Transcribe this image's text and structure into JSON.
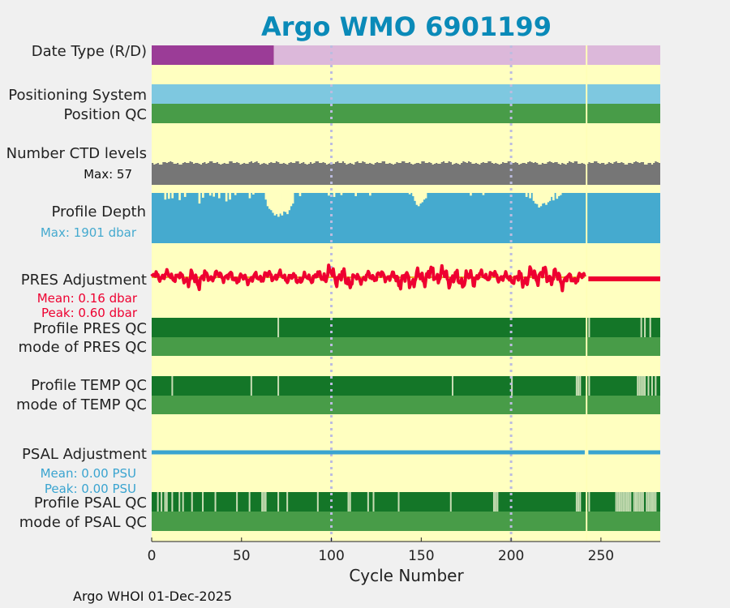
{
  "chart_data": {
    "type": "band-timeline",
    "title": "Argo WMO 6901199",
    "xlabel": "Cycle Number",
    "xlim": [
      0,
      283
    ],
    "xticks": [
      0,
      50,
      100,
      150,
      200,
      250
    ],
    "gridlines_x": [
      100,
      200
    ],
    "marker_cycle": 242,
    "footer": "Argo WHOI 01-Dec-2025",
    "colors": {
      "background": "#ffffc0",
      "figure": "#f0f0f0",
      "title": "#0a8ab8",
      "qc_good": "#147628",
      "qc_mode": "#489c48",
      "qc_flag": "#c8ddb4",
      "positioning": "#7ec8e0",
      "ctd": "#767676",
      "depth": "#45aacf",
      "pres_line": "#ee0030",
      "psal_line": "#3aa4d0",
      "date_realtime": "#9b3c97",
      "date_delayed": "#dcb8da",
      "grid": "#bcbce0",
      "marker": "#ffffb8"
    },
    "rows": {
      "date_type": {
        "label": "Date Type (R/D)",
        "segments": [
          {
            "start": 0,
            "end": 68,
            "mode": "R"
          },
          {
            "start": 68,
            "end": 283,
            "mode": "D"
          }
        ]
      },
      "positioning": {
        "label": "Positioning System"
      },
      "position_qc": {
        "label": "Position QC"
      },
      "ctd_levels": {
        "label": "Number CTD levels",
        "max_label": "Max: 57",
        "max": 57
      },
      "profile_depth": {
        "label": "Profile Depth",
        "max_label": "Max: 1901 dbar",
        "max_dbar": 1901,
        "shallow_cycles": [
          {
            "cycle": 7,
            "dbar": 1650
          },
          {
            "cycle": 9,
            "dbar": 1680
          },
          {
            "cycle": 11,
            "dbar": 1700
          },
          {
            "cycle": 15,
            "dbar": 1630
          },
          {
            "cycle": 18,
            "dbar": 1750
          },
          {
            "cycle": 26,
            "dbar": 1500
          },
          {
            "cycle": 28,
            "dbar": 1720
          },
          {
            "cycle": 32,
            "dbar": 1800
          },
          {
            "cycle": 34,
            "dbar": 1760
          },
          {
            "cycle": 37,
            "dbar": 1700
          },
          {
            "cycle": 41,
            "dbar": 1580
          },
          {
            "cycle": 43,
            "dbar": 1650
          },
          {
            "cycle": 46,
            "dbar": 1820
          },
          {
            "cycle": 54,
            "dbar": 1700
          },
          {
            "cycle": 56,
            "dbar": 1840
          },
          {
            "cycle": 63,
            "dbar": 1650
          },
          {
            "cycle": 64,
            "dbar": 1400
          },
          {
            "cycle": 65,
            "dbar": 1300
          },
          {
            "cycle": 66,
            "dbar": 1250
          },
          {
            "cycle": 67,
            "dbar": 1150
          },
          {
            "cycle": 68,
            "dbar": 1050
          },
          {
            "cycle": 69,
            "dbar": 1100
          },
          {
            "cycle": 70,
            "dbar": 1000
          },
          {
            "cycle": 71,
            "dbar": 1120
          },
          {
            "cycle": 72,
            "dbar": 1050
          },
          {
            "cycle": 73,
            "dbar": 1200
          },
          {
            "cycle": 74,
            "dbar": 1180
          },
          {
            "cycle": 75,
            "dbar": 1100
          },
          {
            "cycle": 76,
            "dbar": 1250
          },
          {
            "cycle": 77,
            "dbar": 1400
          },
          {
            "cycle": 78,
            "dbar": 1500
          },
          {
            "cycle": 82,
            "dbar": 1780
          },
          {
            "cycle": 98,
            "dbar": 1800
          },
          {
            "cycle": 101,
            "dbar": 1750
          },
          {
            "cycle": 105,
            "dbar": 1820
          },
          {
            "cycle": 113,
            "dbar": 1780
          },
          {
            "cycle": 121,
            "dbar": 1800
          },
          {
            "cycle": 143,
            "dbar": 1850
          },
          {
            "cycle": 145,
            "dbar": 1780
          },
          {
            "cycle": 146,
            "dbar": 1600
          },
          {
            "cycle": 147,
            "dbar": 1450
          },
          {
            "cycle": 148,
            "dbar": 1400
          },
          {
            "cycle": 149,
            "dbar": 1500
          },
          {
            "cycle": 150,
            "dbar": 1550
          },
          {
            "cycle": 151,
            "dbar": 1650
          },
          {
            "cycle": 152,
            "dbar": 1700
          },
          {
            "cycle": 177,
            "dbar": 1800
          },
          {
            "cycle": 184,
            "dbar": 1820
          },
          {
            "cycle": 208,
            "dbar": 1750
          },
          {
            "cycle": 210,
            "dbar": 1700
          },
          {
            "cycle": 212,
            "dbar": 1600
          },
          {
            "cycle": 213,
            "dbar": 1500
          },
          {
            "cycle": 214,
            "dbar": 1480
          },
          {
            "cycle": 215,
            "dbar": 1350
          },
          {
            "cycle": 216,
            "dbar": 1400
          },
          {
            "cycle": 217,
            "dbar": 1500
          },
          {
            "cycle": 218,
            "dbar": 1520
          },
          {
            "cycle": 219,
            "dbar": 1450
          },
          {
            "cycle": 220,
            "dbar": 1550
          },
          {
            "cycle": 221,
            "dbar": 1600
          },
          {
            "cycle": 222,
            "dbar": 1750
          },
          {
            "cycle": 223,
            "dbar": 1620
          },
          {
            "cycle": 225,
            "dbar": 1680
          },
          {
            "cycle": 226,
            "dbar": 1780
          },
          {
            "cycle": 227,
            "dbar": 1820
          }
        ]
      },
      "pres_adjustment": {
        "label": "PRES Adjustment",
        "mean_label": "Mean: 0.16 dbar",
        "peak_label": "Peak: 0.60 dbar",
        "mean": 0.16,
        "peak": 0.6,
        "series_end": 241,
        "flat_segment": {
          "start": 243,
          "end": 283
        }
      },
      "profile_pres_qc": {
        "label": "Profile PRES QC",
        "flag_cycles": [
          70,
          243,
          272,
          274,
          277
        ]
      },
      "mode_pres_qc": {
        "label": "mode of PRES QC"
      },
      "profile_temp_qc": {
        "label": "Profile TEMP QC",
        "flag_cycles": [
          11,
          55,
          70,
          167,
          200,
          236,
          237,
          238,
          243,
          270,
          271,
          272,
          273,
          274,
          276,
          278,
          280
        ]
      },
      "mode_temp_qc": {
        "label": "mode of TEMP QC"
      },
      "psal_adjustment": {
        "label": "PSAL Adjustment",
        "mean_label": "Mean: 0.00 PSU",
        "peak_label": "Peak: 0.00 PSU",
        "mean": 0.0,
        "peak": 0.0
      },
      "profile_psal_qc": {
        "label": "Profile PSAL QC",
        "flag_cycles": [
          3,
          5,
          7,
          8,
          11,
          15,
          17,
          22,
          28,
          35,
          47,
          54,
          61,
          62,
          63,
          70,
          75,
          92,
          109,
          110,
          120,
          123,
          137,
          166,
          190,
          191,
          192,
          236,
          237,
          238,
          243,
          258,
          259,
          260,
          261,
          262,
          263,
          264,
          265,
          266,
          268,
          269,
          270,
          271,
          272,
          273,
          275,
          276,
          277,
          278,
          279,
          280
        ]
      },
      "mode_psal_qc": {
        "label": "mode of PSAL QC"
      }
    }
  }
}
